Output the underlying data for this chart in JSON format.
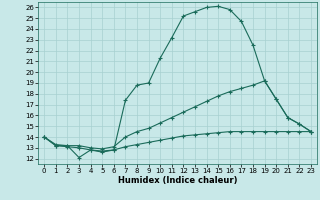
{
  "title": "",
  "xlabel": "Humidex (Indice chaleur)",
  "bg_color": "#c8e8e8",
  "line_color": "#1a6b5a",
  "grid_color": "#a8d0d0",
  "xlim": [
    -0.5,
    23.5
  ],
  "ylim": [
    11.5,
    26.5
  ],
  "xticks": [
    0,
    1,
    2,
    3,
    4,
    5,
    6,
    7,
    8,
    9,
    10,
    11,
    12,
    13,
    14,
    15,
    16,
    17,
    18,
    19,
    20,
    21,
    22,
    23
  ],
  "yticks": [
    12,
    13,
    14,
    15,
    16,
    17,
    18,
    19,
    20,
    21,
    22,
    23,
    24,
    25,
    26
  ],
  "line1_x": [
    0,
    1,
    2,
    3,
    4,
    5,
    6,
    7,
    8,
    9,
    10,
    11,
    12,
    13,
    14,
    15,
    16,
    17,
    18,
    19,
    20,
    21,
    22,
    23
  ],
  "line1_y": [
    14.0,
    13.2,
    13.2,
    12.1,
    12.8,
    12.6,
    12.8,
    17.4,
    18.8,
    19.0,
    21.3,
    23.2,
    25.2,
    25.6,
    26.0,
    26.1,
    25.8,
    24.7,
    22.5,
    19.2,
    17.5,
    15.8,
    15.2,
    14.5
  ],
  "line2_x": [
    0,
    1,
    2,
    3,
    4,
    5,
    6,
    7,
    8,
    9,
    10,
    11,
    12,
    13,
    14,
    15,
    16,
    17,
    18,
    19,
    20,
    21,
    22,
    23
  ],
  "line2_y": [
    14.0,
    13.3,
    13.2,
    13.2,
    13.0,
    12.9,
    13.1,
    14.0,
    14.5,
    14.8,
    15.3,
    15.8,
    16.3,
    16.8,
    17.3,
    17.8,
    18.2,
    18.5,
    18.8,
    19.2,
    17.5,
    15.8,
    15.2,
    14.5
  ],
  "line3_x": [
    0,
    1,
    2,
    3,
    4,
    5,
    6,
    7,
    8,
    9,
    10,
    11,
    12,
    13,
    14,
    15,
    16,
    17,
    18,
    19,
    20,
    21,
    22,
    23
  ],
  "line3_y": [
    14.0,
    13.2,
    13.1,
    13.0,
    12.8,
    12.7,
    12.8,
    13.1,
    13.3,
    13.5,
    13.7,
    13.9,
    14.1,
    14.2,
    14.3,
    14.4,
    14.5,
    14.5,
    14.5,
    14.5,
    14.5,
    14.5,
    14.5,
    14.5
  ]
}
